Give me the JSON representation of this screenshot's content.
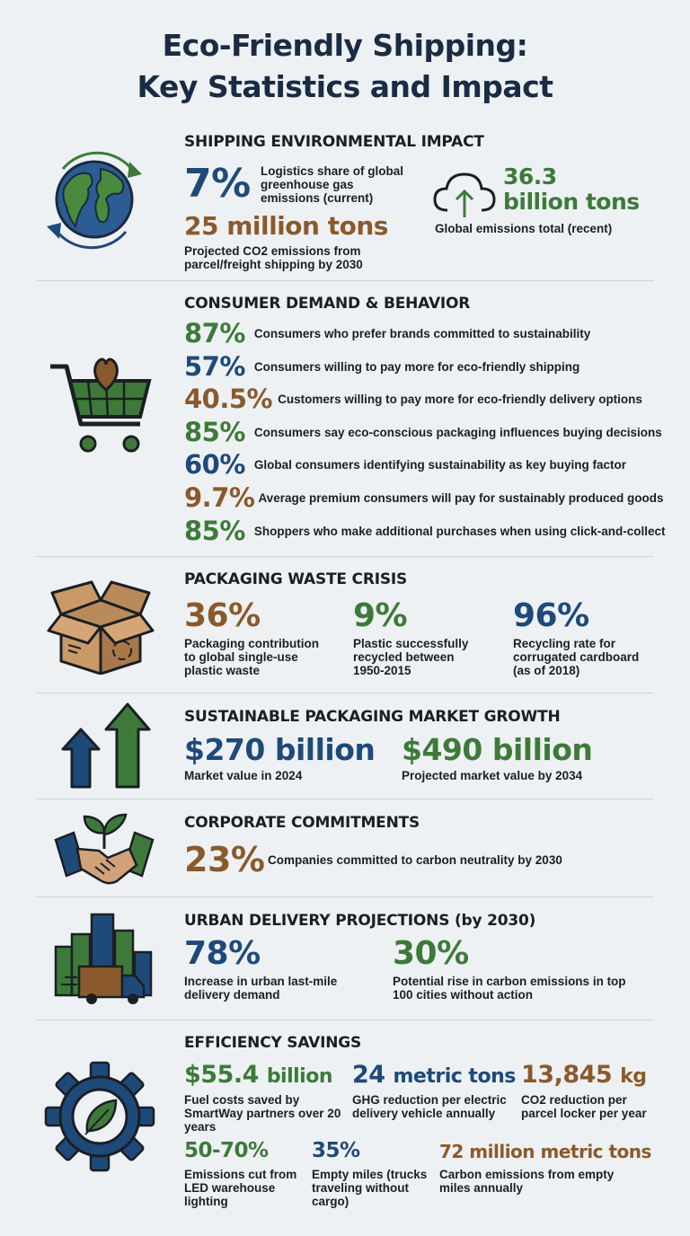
{
  "title": {
    "line1": "Eco-Friendly Shipping:",
    "line2": "Key Statistics and Impact"
  },
  "colors": {
    "blue": "#1e4a7a",
    "green": "#3d7a3a",
    "brown": "#8a5a2c",
    "background": "#eef1f3"
  },
  "shipping_impact": {
    "heading": "SHIPPING ENVIRONMENTAL IMPACT",
    "icon": "globe-recycle-icon",
    "stat1": {
      "value": "7%",
      "desc": "Logistics share of global greenhouse gas emissions (current)"
    },
    "stat2": {
      "value_main": "36.3",
      "value_unit": "billion tons",
      "desc": "Global emissions total (recent)",
      "icon": "cloud-upload-icon"
    },
    "stat3": {
      "value": "25 million tons",
      "desc": "Projected CO2 emissions from parcel/freight shipping by 2030"
    }
  },
  "consumer": {
    "heading": "CONSUMER DEMAND & BEHAVIOR",
    "icon": "shopping-cart-heart-icon",
    "rows": [
      {
        "value": "87%",
        "text": "Consumers who prefer brands committed to sustainability",
        "color": "green"
      },
      {
        "value": "57%",
        "text": "Consumers willing to pay more for eco-friendly shipping",
        "color": "blue"
      },
      {
        "value": "40.5%",
        "text": "Customers willing to pay more for eco-friendly delivery options",
        "color": "brown"
      },
      {
        "value": "85%",
        "text": "Consumers say eco-conscious packaging influences buying decisions",
        "color": "green"
      },
      {
        "value": "60%",
        "text": "Global consumers identifying sustainability as key buying factor",
        "color": "blue"
      },
      {
        "value": "9.7%",
        "text": "Average premium consumers will pay for sustainably produced goods",
        "color": "brown"
      },
      {
        "value": "85%",
        "text": "Shoppers who make additional purchases when using click-and-collect",
        "color": "green"
      }
    ]
  },
  "packaging": {
    "heading": "PACKAGING WASTE CRISIS",
    "icon": "open-box-recycle-icon",
    "stats": [
      {
        "value": "36%",
        "desc": "Packaging contribution to global single-use plastic waste"
      },
      {
        "value": "9%",
        "desc": "Plastic successfully recycled between 1950-2015"
      },
      {
        "value": "96%",
        "desc": "Recycling rate for corrugated cardboard (as of 2018)"
      }
    ]
  },
  "market": {
    "heading": "SUSTAINABLE PACKAGING MARKET GROWTH",
    "icon": "growth-arrows-icon",
    "stats": [
      {
        "value": "$270 billion",
        "desc": "Market value in 2024"
      },
      {
        "value": "$490 billion",
        "desc": "Projected market value by 2034"
      }
    ]
  },
  "corporate": {
    "heading": "CORPORATE COMMITMENTS",
    "icon": "handshake-plant-icon",
    "stat": {
      "value": "23%",
      "desc": "Companies committed to carbon neutrality by 2030"
    }
  },
  "urban": {
    "heading": "URBAN DELIVERY PROJECTIONS (by 2030)",
    "icon": "city-delivery-truck-icon",
    "stats": [
      {
        "value": "78%",
        "desc": "Increase in urban last-mile delivery demand"
      },
      {
        "value": "30%",
        "desc": "Potential rise in carbon emissions in top 100 cities without action"
      }
    ]
  },
  "efficiency": {
    "heading": "EFFICIENCY SAVINGS",
    "icon": "gear-leaf-icon",
    "row1": [
      {
        "value_main": "$55.4",
        "value_unit": "billion",
        "desc": "Fuel costs saved by SmartWay partners over 20 years"
      },
      {
        "value_main": "24",
        "value_unit": "metric tons",
        "desc": "GHG reduction per electric delivery vehicle annually"
      },
      {
        "value_main": "13,845",
        "value_unit": "kg",
        "desc": "CO2 reduction per parcel locker per year"
      }
    ],
    "row2": [
      {
        "value": "50-70%",
        "desc": "Emissions cut from LED warehouse lighting"
      },
      {
        "value": "35%",
        "desc": "Empty miles (trucks traveling without cargo)"
      },
      {
        "value": "72 million metric tons",
        "desc": "Carbon emissions from empty miles annually"
      }
    ]
  }
}
